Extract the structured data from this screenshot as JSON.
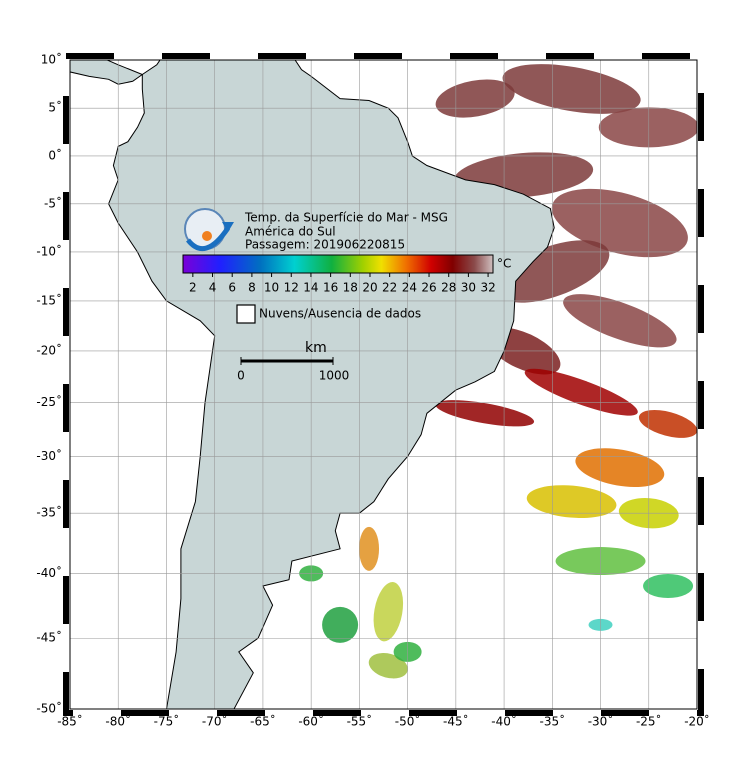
{
  "map": {
    "title": "Temp. da Superfície do Mar - MSG",
    "subtitle": "América do Sul",
    "pass": "Passagem: 201906220815",
    "colorbar": {
      "unit": "°C",
      "lim": [
        1,
        32.5
      ],
      "ticks": [
        2,
        4,
        6,
        8,
        10,
        12,
        14,
        16,
        18,
        20,
        22,
        24,
        26,
        28,
        30,
        32
      ]
    },
    "legend": "Nuvens/Ausencia de dados",
    "scale": {
      "unit": "km",
      "labels": [
        0,
        1000
      ]
    },
    "lon_lim": [
      -85,
      -20
    ],
    "lat_lim": [
      -50,
      10
    ],
    "lat_ticks": [
      {
        "value": 10,
        "label": "10˚"
      },
      {
        "value": 5,
        "label": "5˚"
      },
      {
        "value": 0,
        "label": "0˚"
      },
      {
        "value": -5,
        "label": "-5˚"
      },
      {
        "value": -10,
        "label": "-10˚"
      },
      {
        "value": -15,
        "label": "-15˚"
      },
      {
        "value": -20,
        "label": "-20˚"
      },
      {
        "value": -25,
        "label": "-25˚"
      },
      {
        "value": -30,
        "label": "-30˚"
      },
      {
        "value": -35,
        "label": "-35˚"
      },
      {
        "value": -40,
        "label": "-40˚"
      },
      {
        "value": -45,
        "label": "-45˚"
      },
      {
        "value": -50,
        "label": "-50˚"
      }
    ],
    "lon_ticks": [
      {
        "value": -85,
        "label": "-85˚"
      },
      {
        "value": -80,
        "label": "-80˚"
      },
      {
        "value": -75,
        "label": "-75˚"
      },
      {
        "value": -70,
        "label": "-70˚"
      },
      {
        "value": -65,
        "label": "-65˚"
      },
      {
        "value": -60,
        "label": "-60˚"
      },
      {
        "value": -55,
        "label": "-55˚"
      },
      {
        "value": -50,
        "label": "-50˚"
      },
      {
        "value": -45,
        "label": "-45˚"
      },
      {
        "value": -40,
        "label": "-40˚"
      },
      {
        "value": -35,
        "label": "-35˚"
      },
      {
        "value": -30,
        "label": "-30˚"
      },
      {
        "value": -25,
        "label": "-25˚"
      },
      {
        "value": -20,
        "label": "-20˚"
      }
    ]
  }
}
